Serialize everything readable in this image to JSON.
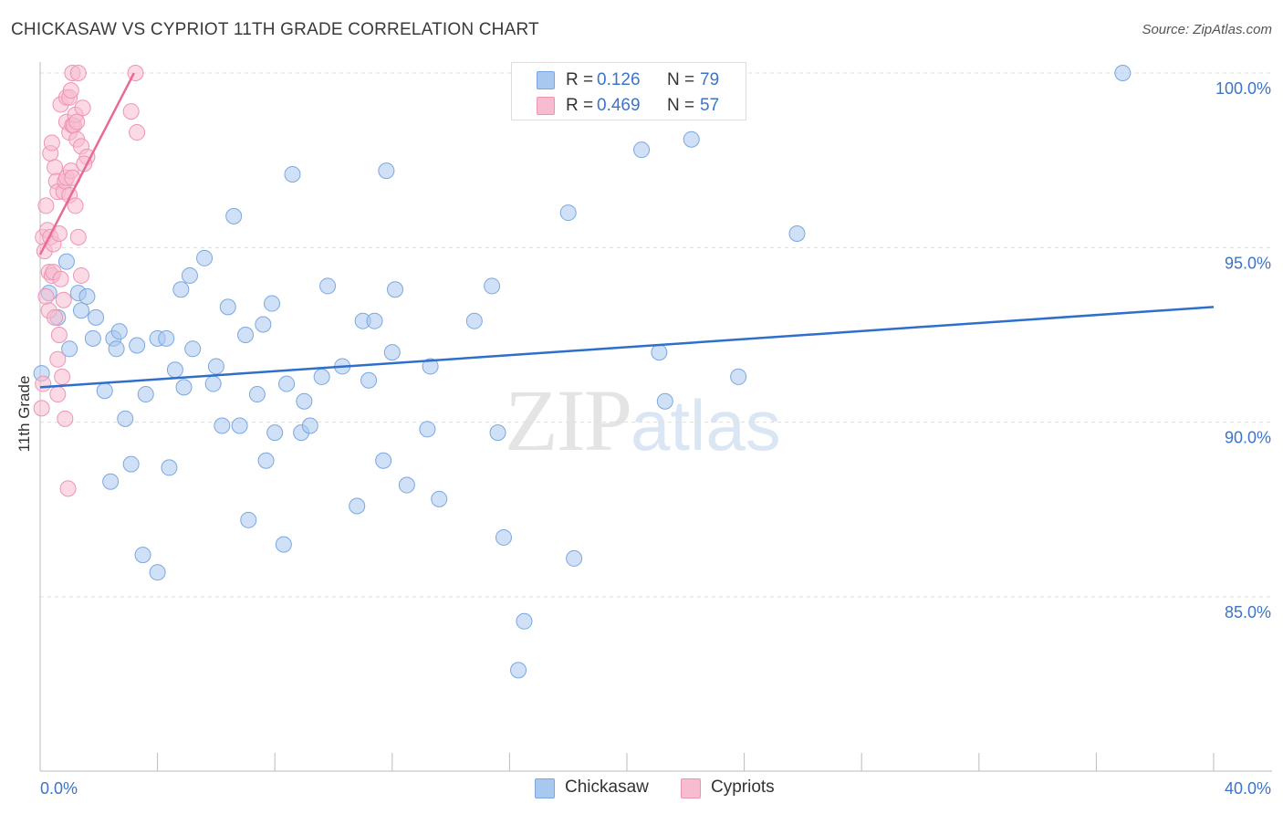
{
  "header": {
    "title": "CHICKASAW VS CYPRIOT 11TH GRADE CORRELATION CHART",
    "source": "Source: ZipAtlas.com"
  },
  "legend_box": {
    "rows": [
      {
        "r_label": "R =",
        "r_value": "0.126",
        "n_label": "N =",
        "n_value": "79",
        "color": "#a9c8f0",
        "border": "#7aa7e0"
      },
      {
        "r_label": "R =",
        "r_value": "0.469",
        "n_label": "N =",
        "n_value": "57",
        "color": "#f8bcd0",
        "border": "#ee94b2"
      }
    ]
  },
  "bottom_legend": [
    {
      "label": "Chickasaw",
      "color": "#a9c8f0",
      "border": "#7aa7e0"
    },
    {
      "label": "Cypriots",
      "color": "#f8bcd0",
      "border": "#ee94b2"
    }
  ],
  "watermark": {
    "zip": "ZIP",
    "atlas": "atlas"
  },
  "chart_data": {
    "type": "scatter",
    "title": "CHICKASAW VS CYPRIOT 11TH GRADE CORRELATION CHART",
    "xlabel": "",
    "ylabel": "11th Grade",
    "xlim": [
      0,
      40
    ],
    "ylim": [
      80.5,
      100.5
    ],
    "x_tick_labels": [
      "0.0%",
      "40.0%"
    ],
    "y_ticks": [
      85,
      90,
      95,
      100
    ],
    "y_tick_labels": [
      "85.0%",
      "90.0%",
      "95.0%",
      "100.0%"
    ],
    "grid": true,
    "legend_position": "top-center",
    "series": [
      {
        "name": "Chickasaw",
        "color": "#a9c8f0",
        "stroke": "#7aa7e0",
        "line_color": "#2f6fcc",
        "trend": {
          "x": [
            0,
            40
          ],
          "y": [
            91.0,
            93.3
          ]
        },
        "points": [
          [
            0.05,
            91.4
          ],
          [
            0.3,
            93.7
          ],
          [
            0.6,
            93.0
          ],
          [
            0.9,
            94.6
          ],
          [
            1.0,
            92.1
          ],
          [
            1.3,
            93.7
          ],
          [
            1.4,
            93.2
          ],
          [
            1.6,
            93.6
          ],
          [
            1.8,
            92.4
          ],
          [
            1.9,
            93.0
          ],
          [
            2.2,
            90.9
          ],
          [
            2.4,
            88.3
          ],
          [
            2.5,
            92.4
          ],
          [
            2.6,
            92.1
          ],
          [
            2.7,
            92.6
          ],
          [
            2.9,
            90.1
          ],
          [
            3.1,
            88.8
          ],
          [
            3.3,
            92.2
          ],
          [
            3.5,
            86.2
          ],
          [
            3.6,
            90.8
          ],
          [
            4.0,
            85.7
          ],
          [
            4.0,
            92.4
          ],
          [
            4.3,
            92.4
          ],
          [
            4.4,
            88.7
          ],
          [
            4.6,
            91.5
          ],
          [
            4.8,
            93.8
          ],
          [
            4.9,
            91.0
          ],
          [
            5.1,
            94.2
          ],
          [
            5.2,
            92.1
          ],
          [
            5.6,
            94.7
          ],
          [
            5.9,
            91.1
          ],
          [
            6.0,
            91.6
          ],
          [
            6.2,
            89.9
          ],
          [
            6.4,
            93.3
          ],
          [
            6.6,
            95.9
          ],
          [
            6.8,
            89.9
          ],
          [
            7.0,
            92.5
          ],
          [
            7.1,
            87.2
          ],
          [
            7.4,
            90.8
          ],
          [
            7.6,
            92.8
          ],
          [
            7.7,
            88.9
          ],
          [
            7.9,
            93.4
          ],
          [
            8.0,
            89.7
          ],
          [
            8.3,
            86.5
          ],
          [
            8.4,
            91.1
          ],
          [
            8.6,
            97.1
          ],
          [
            8.9,
            89.7
          ],
          [
            9.0,
            90.6
          ],
          [
            9.2,
            89.9
          ],
          [
            9.6,
            91.3
          ],
          [
            9.8,
            93.9
          ],
          [
            10.3,
            91.6
          ],
          [
            10.8,
            87.6
          ],
          [
            11.0,
            92.9
          ],
          [
            11.2,
            91.2
          ],
          [
            11.4,
            92.9
          ],
          [
            11.7,
            88.9
          ],
          [
            11.8,
            97.2
          ],
          [
            12.0,
            92.0
          ],
          [
            12.1,
            93.8
          ],
          [
            12.5,
            88.2
          ],
          [
            13.2,
            89.8
          ],
          [
            13.3,
            91.6
          ],
          [
            13.6,
            87.8
          ],
          [
            14.8,
            92.9
          ],
          [
            15.4,
            93.9
          ],
          [
            15.6,
            89.7
          ],
          [
            15.8,
            86.7
          ],
          [
            16.5,
            84.3
          ],
          [
            16.3,
            82.9
          ],
          [
            18.0,
            96.0
          ],
          [
            18.2,
            86.1
          ],
          [
            20.5,
            97.8
          ],
          [
            21.1,
            92.0
          ],
          [
            21.3,
            90.6
          ],
          [
            22.2,
            98.1
          ],
          [
            23.8,
            91.3
          ],
          [
            25.8,
            95.4
          ],
          [
            36.9,
            100.0
          ]
        ]
      },
      {
        "name": "Cypriots",
        "color": "#f8bcd0",
        "stroke": "#ee94b2",
        "line_color": "#e8699a",
        "trend": {
          "x": [
            0.0,
            3.2
          ],
          "y": [
            94.8,
            100.0
          ]
        },
        "points": [
          [
            0.05,
            90.4
          ],
          [
            0.1,
            91.1
          ],
          [
            0.1,
            95.3
          ],
          [
            0.15,
            94.9
          ],
          [
            0.2,
            96.2
          ],
          [
            0.2,
            93.6
          ],
          [
            0.25,
            95.5
          ],
          [
            0.3,
            94.3
          ],
          [
            0.3,
            93.2
          ],
          [
            0.35,
            97.7
          ],
          [
            0.35,
            95.3
          ],
          [
            0.4,
            98.0
          ],
          [
            0.4,
            94.2
          ],
          [
            0.45,
            95.1
          ],
          [
            0.45,
            94.3
          ],
          [
            0.5,
            97.3
          ],
          [
            0.5,
            93.0
          ],
          [
            0.55,
            96.9
          ],
          [
            0.6,
            91.8
          ],
          [
            0.6,
            90.8
          ],
          [
            0.6,
            96.6
          ],
          [
            0.65,
            95.4
          ],
          [
            0.65,
            92.5
          ],
          [
            0.7,
            99.1
          ],
          [
            0.7,
            94.1
          ],
          [
            0.75,
            91.3
          ],
          [
            0.8,
            96.6
          ],
          [
            0.8,
            93.5
          ],
          [
            0.85,
            90.1
          ],
          [
            0.85,
            96.9
          ],
          [
            0.9,
            98.6
          ],
          [
            0.9,
            99.3
          ],
          [
            0.9,
            97.0
          ],
          [
            0.95,
            88.1
          ],
          [
            1.0,
            99.3
          ],
          [
            1.0,
            98.3
          ],
          [
            1.0,
            96.5
          ],
          [
            1.05,
            97.2
          ],
          [
            1.05,
            99.5
          ],
          [
            1.1,
            100.0
          ],
          [
            1.1,
            98.5
          ],
          [
            1.1,
            97.0
          ],
          [
            1.15,
            98.5
          ],
          [
            1.2,
            98.8
          ],
          [
            1.2,
            96.2
          ],
          [
            1.25,
            98.6
          ],
          [
            1.25,
            98.1
          ],
          [
            1.3,
            95.3
          ],
          [
            1.3,
            100.0
          ],
          [
            1.4,
            97.9
          ],
          [
            1.4,
            94.2
          ],
          [
            1.45,
            99.0
          ],
          [
            1.6,
            97.6
          ],
          [
            1.5,
            97.4
          ],
          [
            3.1,
            98.9
          ],
          [
            3.25,
            100.0
          ],
          [
            3.3,
            98.3
          ]
        ]
      }
    ]
  }
}
